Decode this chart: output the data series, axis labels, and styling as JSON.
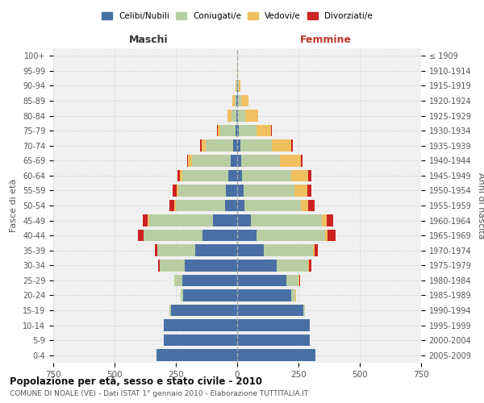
{
  "age_groups": [
    "0-4",
    "5-9",
    "10-14",
    "15-19",
    "20-24",
    "25-29",
    "30-34",
    "35-39",
    "40-44",
    "45-49",
    "50-54",
    "55-59",
    "60-64",
    "65-69",
    "70-74",
    "75-79",
    "80-84",
    "85-89",
    "90-94",
    "95-99",
    "100+"
  ],
  "birth_years": [
    "2005-2009",
    "2000-2004",
    "1995-1999",
    "1990-1994",
    "1985-1989",
    "1980-1984",
    "1975-1979",
    "1970-1974",
    "1965-1969",
    "1960-1964",
    "1955-1959",
    "1950-1954",
    "1945-1949",
    "1940-1944",
    "1935-1939",
    "1930-1934",
    "1925-1929",
    "1920-1924",
    "1915-1919",
    "1910-1914",
    "≤ 1909"
  ],
  "colors": {
    "celibinubili": "#4a6fa5",
    "coniugati": "#b8cea2",
    "vedovi": "#f0c060",
    "divorziati": "#cc2222"
  },
  "maschi": {
    "celibinubili": [
      330,
      300,
      300,
      270,
      220,
      225,
      215,
      170,
      140,
      100,
      50,
      45,
      35,
      25,
      18,
      8,
      3,
      2,
      1,
      0,
      0
    ],
    "coniugati": [
      0,
      0,
      0,
      5,
      10,
      30,
      100,
      155,
      240,
      260,
      200,
      195,
      190,
      160,
      110,
      60,
      20,
      8,
      2,
      0,
      0
    ],
    "vedovi": [
      0,
      0,
      0,
      0,
      0,
      0,
      1,
      2,
      3,
      5,
      5,
      8,
      10,
      15,
      18,
      12,
      15,
      10,
      3,
      1,
      0
    ],
    "divorziati": [
      0,
      0,
      0,
      0,
      1,
      3,
      8,
      10,
      20,
      20,
      20,
      15,
      8,
      5,
      5,
      2,
      0,
      0,
      0,
      0,
      0
    ]
  },
  "femmine": {
    "celibinubili": [
      320,
      295,
      295,
      270,
      220,
      200,
      160,
      110,
      80,
      55,
      30,
      25,
      20,
      15,
      12,
      8,
      4,
      3,
      2,
      0,
      0
    ],
    "coniugati": [
      0,
      0,
      2,
      5,
      18,
      50,
      130,
      200,
      280,
      290,
      230,
      210,
      200,
      160,
      130,
      70,
      30,
      12,
      3,
      1,
      0
    ],
    "vedovi": [
      0,
      0,
      0,
      0,
      1,
      2,
      3,
      5,
      10,
      20,
      30,
      50,
      70,
      85,
      80,
      60,
      50,
      30,
      8,
      3,
      0
    ],
    "divorziati": [
      0,
      0,
      0,
      0,
      1,
      3,
      8,
      15,
      30,
      25,
      25,
      18,
      12,
      8,
      6,
      3,
      1,
      1,
      0,
      0,
      0
    ]
  },
  "xlim": 750,
  "title_main": "Popolazione per età, sesso e stato civile - 2010",
  "title_sub": "COMUNE DI NOALE (VE) - Dati ISTAT 1° gennaio 2010 - Elaborazione TUTTITALIA.IT",
  "ylabel_left": "Fasce di età",
  "ylabel_right": "Anni di nascita",
  "xlabel_maschi": "Maschi",
  "xlabel_femmine": "Femmine",
  "bg_color": "#f0f0f0",
  "grid_color": "#cccccc"
}
